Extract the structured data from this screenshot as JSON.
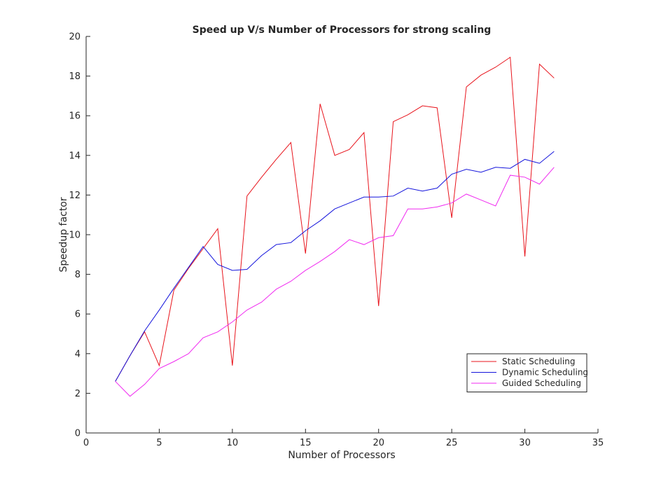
{
  "chart_data": {
    "type": "line",
    "title": "Speed up V/s Number of Processors for strong scaling",
    "xlabel": "Number of Processors",
    "ylabel": "Speedup factor",
    "xlim": [
      0,
      35
    ],
    "ylim": [
      0,
      20
    ],
    "xticks": [
      0,
      5,
      10,
      15,
      20,
      25,
      30,
      35
    ],
    "yticks": [
      0,
      2,
      4,
      6,
      8,
      10,
      12,
      14,
      16,
      18,
      20
    ],
    "grid": false,
    "legend_position": "lower-right",
    "x": [
      2,
      3,
      4,
      5,
      6,
      7,
      8,
      9,
      10,
      11,
      12,
      13,
      14,
      15,
      16,
      17,
      18,
      19,
      20,
      21,
      22,
      23,
      24,
      25,
      26,
      27,
      28,
      29,
      30,
      31,
      32
    ],
    "series": [
      {
        "name": "Static Scheduling",
        "color": "#e8141c",
        "values": [
          2.6,
          3.9,
          5.1,
          3.4,
          7.2,
          8.3,
          9.3,
          10.3,
          3.4,
          11.95,
          12.9,
          13.8,
          14.65,
          9.05,
          16.6,
          14.0,
          14.3,
          15.15,
          6.4,
          15.7,
          16.05,
          16.5,
          16.4,
          10.85,
          17.45,
          18.05,
          18.45,
          18.95,
          8.9,
          18.6,
          17.9
        ]
      },
      {
        "name": "Dynamic Scheduling",
        "color": "#1414dc",
        "values": [
          2.6,
          3.9,
          5.15,
          6.2,
          7.3,
          8.35,
          9.4,
          8.5,
          8.2,
          8.25,
          8.95,
          9.5,
          9.6,
          10.2,
          10.7,
          11.3,
          11.6,
          11.9,
          11.9,
          11.95,
          12.35,
          12.2,
          12.35,
          13.05,
          13.3,
          13.15,
          13.4,
          13.35,
          13.8,
          13.6,
          14.2
        ]
      },
      {
        "name": "Guided Scheduling",
        "color": "#f02af0",
        "values": [
          2.6,
          1.85,
          2.45,
          3.25,
          3.6,
          4.0,
          4.8,
          5.1,
          5.6,
          6.2,
          6.6,
          7.25,
          7.65,
          8.2,
          8.65,
          9.15,
          9.75,
          9.5,
          9.85,
          9.95,
          11.3,
          11.3,
          11.4,
          11.6,
          12.05,
          11.75,
          11.45,
          13.0,
          12.9,
          12.55,
          13.4
        ]
      }
    ]
  }
}
